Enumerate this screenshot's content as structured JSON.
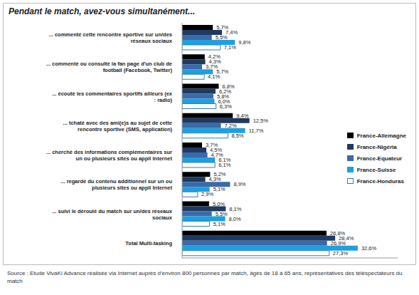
{
  "chart_data": {
    "type": "bar",
    "orientation": "horizontal",
    "title": "Pendant le match, avez-vous simultanément...",
    "subtitle": "Source : Etude VivaKi Advance réalisée via Internet auprès d'environ 800 personnes par match, âgés de 18 à 65 ans, représentatives des téléspectateurs du match",
    "categories": [
      "... commenté cette rencontre sportive sur un/des réseaux sociaux",
      "... commenté ou consulté la fan page d'un club de football (Facebook, Twitter)",
      "... écouté les commentaires sportifs ailleurs (ex : radio)",
      "... tchaté avec des ami(e)s au sujet de cette rencontre sportive (SMS, application)",
      "... cherché des informations complémentaires sur un ou plusieurs sites ou appli Internet",
      "... regardé du contenu additionnel sur un ou plusieurs sites ou appli Internet",
      "... suivi le déroulé du match sur un/des réseaux sociaux",
      "Total Multi-tasking"
    ],
    "series": [
      {
        "name": "France-Allemagne",
        "color": "#000000",
        "values": [
          5.7,
          4.2,
          6.8,
          9.4,
          3.7,
          5.2,
          5.0,
          26.8
        ],
        "value_labels": [
          "5,7%",
          "4,2%",
          "6,8%",
          "9,4%",
          "3,7%",
          "5,2%",
          "5,0%",
          "26,8%"
        ]
      },
      {
        "name": "France-Nigéria",
        "color": "#1f3a60",
        "values": [
          7.4,
          4.3,
          6.2,
          12.5,
          4.5,
          4.3,
          8.1,
          28.4
        ],
        "value_labels": [
          "7,4%",
          "4,3%",
          "6,2%",
          "12,5%",
          "4,5%",
          "4,3%",
          "8,1%",
          "28,4%"
        ]
      },
      {
        "name": "France-Equateur",
        "color": "#3a6aa8",
        "values": [
          5.5,
          3.7,
          5.8,
          7.2,
          4.7,
          8.9,
          5.5,
          26.9
        ],
        "value_labels": [
          "5,5%",
          "3,7%",
          "5,8%",
          "7,2%",
          "4,7%",
          "8,9%",
          "5,5%",
          "26,9%"
        ]
      },
      {
        "name": "France-Suisse",
        "color": "#1f9fe0",
        "values": [
          9.8,
          5.7,
          6.0,
          11.7,
          6.1,
          5.1,
          8.0,
          32.6
        ],
        "value_labels": [
          "9,8%",
          "5,7%",
          "6,0%",
          "11,7%",
          "6,1%",
          "5,1%",
          "8,0%",
          "32,6%"
        ]
      },
      {
        "name": "France-Honduras",
        "color": "#ffffff",
        "values": [
          7.1,
          4.1,
          6.3,
          8.5,
          6.1,
          2.9,
          5.1,
          27.3
        ],
        "value_labels": [
          "7,1%",
          "4,1%",
          "6,3%",
          "8,5%",
          "6,1%",
          "2,9%",
          "5,1%",
          "27,3%"
        ]
      }
    ],
    "xlim": [
      0,
      40
    ],
    "tick_labels": "y",
    "data_labels": true,
    "legend": "right",
    "grid": false
  }
}
